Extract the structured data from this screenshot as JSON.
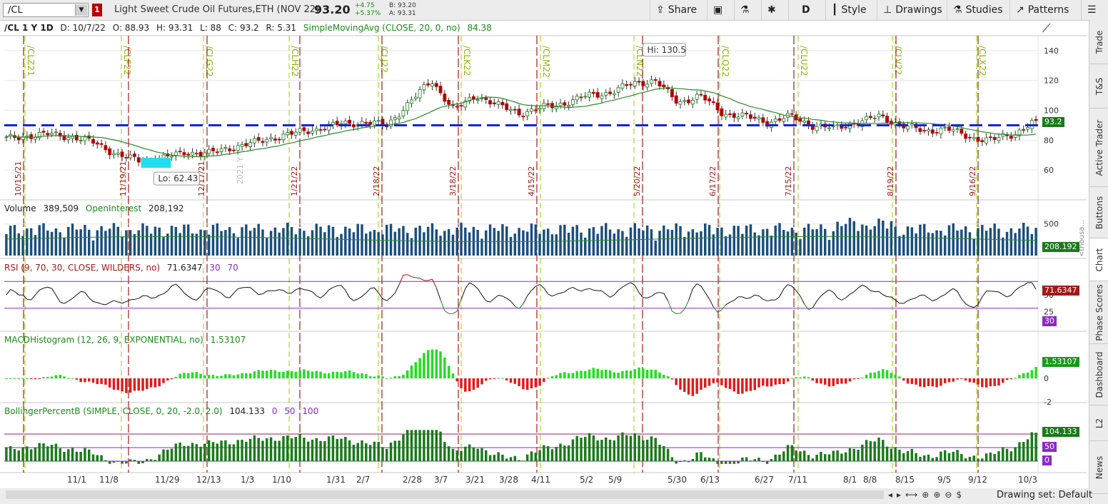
{
  "toolbar": {
    "symbol": "/CL",
    "link_badge": "1",
    "description": "Light Sweet Crude Oil Futures,ETH (NOV 22)",
    "last": "93.20",
    "change": "+4.75",
    "change_pct": "+5.37%",
    "bid": "B: 93.20",
    "ask": "A: 93.31",
    "share_label": "Share",
    "period_label": "D",
    "style_label": "Style",
    "drawings_label": "Drawings",
    "studies_label": "Studies",
    "patterns_label": "Patterns"
  },
  "price_header": {
    "symbol_period": "/CL 1 Y 1D",
    "date": "D: 10/7/22",
    "open": "O: 88.93",
    "high": "H: 93.31",
    "low": "L: 88",
    "close": "C: 93.2",
    "range": "R: 5.31",
    "sma_label": "SimpleMovingAvg (CLOSE, 20, 0, no)",
    "sma_value": "84.38"
  },
  "volume_header": {
    "label": "Volume",
    "value": "389,509",
    "oi_label": "OpenInterest",
    "oi_value": "208,192"
  },
  "rsi_header": {
    "label": "RSI (9, 70, 30, CLOSE, WILDERS, no)",
    "value": "71.6347",
    "os": "30",
    "ob": "70"
  },
  "macd_header": {
    "label": "MACDHistogram (12, 26, 9, EXPONENTIAL, no)",
    "value": "1.53107"
  },
  "bb_header": {
    "label": "BollingerPercentB (SIMPLE, CLOSE, 0, 20, -2.0, 2.0)",
    "value": "104.133",
    "l0": "0",
    "l50": "50",
    "l100": "100"
  },
  "price_axis": [
    "140",
    "120",
    "100",
    "80",
    "60"
  ],
  "price_axis_vals": [
    140,
    120,
    100,
    80,
    60
  ],
  "volume_axis": [
    "500"
  ],
  "volume_axis_unit": "<thousa...",
  "rsi_axis": [
    "50"
  ],
  "rsi_axis_low": "25",
  "macd_axis": [
    "0",
    "-2"
  ],
  "price_tag": "93.2",
  "volume_tag": "208.192",
  "rsi_tag": "71.6347",
  "rsi_os_tag": "30",
  "macd_tag": "1.53107",
  "bb_tag": "104.133",
  "bb_50_tag": "50",
  "bb_0_tag": "0",
  "hi_label": "Hi: 130.5",
  "lo_label": "Lo: 62.43",
  "year_watermark": "2021 Y",
  "x_labels": [
    "11/1",
    "11/8",
    "11/29",
    "12/13",
    "1/3",
    "1/10",
    "1/31",
    "2/7",
    "2/28",
    "3/7",
    "3/21",
    "3/28",
    "4/11",
    "5/2",
    "5/9",
    "5/30",
    "6/13",
    "6/27",
    "7/11",
    "8/1",
    "8/8",
    "8/15",
    "9/5",
    "9/12",
    "10/3"
  ],
  "expiry_labels": [
    "/CLZ21",
    "/CLF22",
    "/CLG22",
    "/CLH22",
    "/CLJ22",
    "/CLK22",
    "/CLM22",
    "/CLN22",
    "/CLQ22",
    "/CLU22",
    "/CLV22",
    "/CLX22"
  ],
  "date_labels": [
    "10/15/21",
    "11/19/21",
    "12/17/21",
    "1/21/22",
    "2/18/22",
    "3/18/22",
    "4/15/22",
    "5/20/22",
    "6/17/22",
    "7/15/22",
    "8/19/22",
    "9/16/22"
  ],
  "right_tabs": [
    "Trade",
    "T&S",
    "Active Trader",
    "Buttons",
    "Chart",
    "Phase Scores",
    "Dashboard",
    "L2",
    "News"
  ],
  "bottom": {
    "drawing_set": "Drawing set: Default"
  },
  "colors": {
    "up": "#1a9a1a",
    "down": "#b40000",
    "sma": "#2a8a2a",
    "support": "#1428c8",
    "volume": "#1a4f7a",
    "rsi_ob": "#a01a1a",
    "rsi_os": "#1a8a1a",
    "macd_pos": "#22dd22",
    "macd_neg": "#e01a1a",
    "bb": "#1a7a1a",
    "expiry": "#9ad000",
    "date_line": "#a01a1a"
  },
  "chart_data": {
    "type": "candlestick",
    "support_level": 90,
    "ylim": [
      40,
      150
    ],
    "price_high": 130.5,
    "price_low": 62.43,
    "last_close": 93.2,
    "sma_last": 84.38,
    "sample_closes": [
      81,
      83,
      84,
      82,
      78,
      70,
      66,
      68,
      72,
      71,
      75,
      78,
      82,
      85,
      88,
      91,
      92,
      90,
      105,
      120,
      100,
      110,
      103,
      98,
      102,
      105,
      110,
      112,
      118,
      120,
      105,
      110,
      98,
      96,
      92,
      96,
      90,
      88,
      92,
      96,
      90,
      86,
      88,
      82,
      80,
      84,
      93.2
    ]
  }
}
